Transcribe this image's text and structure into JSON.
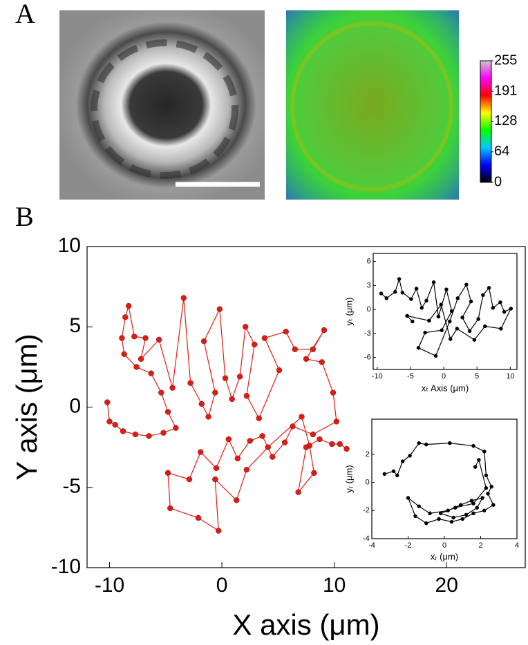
{
  "panel_labels": {
    "a": "A",
    "b": "B"
  },
  "chart_data": [
    {
      "type": "colorbar",
      "ylim": [
        0,
        255
      ],
      "yticks": [
        0,
        64,
        128,
        191,
        255
      ],
      "colors": [
        "#000000",
        "#0000ff",
        "#00c8ff",
        "#00ff00",
        "#ffff00",
        "#ff0000",
        "#ff00ff",
        "#c8c8c8"
      ]
    },
    {
      "type": "line",
      "marker": "circle",
      "xlabel": "X axis (μm)",
      "ylabel": "Y axis (μm)",
      "xlim": [
        -12,
        27
      ],
      "ylim": [
        -10,
        10
      ],
      "xticks": [
        -10,
        0,
        10,
        20
      ],
      "yticks": [
        -10,
        -5,
        0,
        5,
        10
      ],
      "x": [
        -10.2,
        -10.0,
        -9.5,
        -8.8,
        -7.7,
        -6.5,
        -5.2,
        -4.1,
        -4.8,
        -5.4,
        -6.3,
        -7.6,
        -8.7,
        -8.9,
        -8.6,
        -8.3,
        -7.8,
        -6.8,
        -7.2,
        -5.6,
        -4.4,
        -3.4,
        -2.8,
        -1.8,
        -1.2,
        -0.6,
        -1.6,
        -0.2,
        0.3,
        0.9,
        1.6,
        2.1,
        2.9,
        2.2,
        3.3,
        5.1,
        3.8,
        5.7,
        6.5,
        8.1,
        9.1,
        7.5,
        8.9,
        9.9,
        10.2,
        8.1,
        6.3,
        5.6,
        4.5,
        3.6,
        2.5,
        1.4,
        0.6,
        -0.5,
        -1.9,
        -2.9,
        -4.8,
        -4.6,
        -2.1,
        -0.3,
        -0.6,
        1.3,
        2.2,
        4.1,
        7.1,
        7.8,
        8.2,
        6.8,
        7.5,
        8.7,
        9.8,
        10.5,
        11.1
      ],
      "series": [
        {
          "color": "#e31a10",
          "values": [
            0.3,
            -0.9,
            -1.1,
            -1.5,
            -1.7,
            -1.8,
            -1.6,
            -1.3,
            -0.3,
            0.9,
            2.1,
            2.5,
            3.3,
            4.3,
            5.6,
            6.3,
            4.4,
            4.3,
            3.0,
            4.2,
            1.2,
            6.8,
            1.5,
            0.2,
            -0.6,
            0.9,
            4.1,
            6.1,
            1.8,
            0.5,
            1.9,
            5.0,
            3.9,
            0.7,
            -0.7,
            2.3,
            4.3,
            4.7,
            3.6,
            3.6,
            4.8,
            3.0,
            2.8,
            0.9,
            -0.9,
            -1.7,
            -1.2,
            -2.2,
            -3.1,
            -1.8,
            -2.1,
            -3.2,
            -2.0,
            -3.8,
            -2.8,
            -4.5,
            -4.1,
            -6.3,
            -6.9,
            -7.7,
            -4.5,
            -5.8,
            -3.9,
            -2.5,
            -0.6,
            -2.4,
            -4.1,
            -5.3,
            -2.5,
            -2.0,
            -2.3,
            -2.3,
            -2.6
          ]
        }
      ]
    },
    {
      "type": "line",
      "marker": "circle",
      "xlabel": "xₜ Axis (μm)",
      "ylabel": "yₜ (μm)",
      "xlim": [
        -10.6,
        11
      ],
      "ylim": [
        -7.5,
        7
      ],
      "xticks": [
        -10,
        -5,
        0,
        5,
        10
      ],
      "yticks": [
        -6,
        -3,
        0,
        3,
        6
      ],
      "x": [
        -9.4,
        -8.6,
        -7.3,
        -6.7,
        -6.2,
        -4.9,
        -4.1,
        -3.3,
        -2.6,
        -1.5,
        -0.8,
        0.4,
        1.2,
        -0.3,
        -2.8,
        -3.8,
        -1.2,
        0.9,
        2.1,
        3.4,
        4.1,
        2.8,
        3.9,
        5.2,
        5.9,
        6.8,
        7.4,
        8.5,
        9.1,
        10.1,
        8.6,
        6.2,
        4.6,
        2.0,
        1.0,
        -0.4,
        -2.2,
        -5.5,
        -4.7
      ],
      "series": [
        {
          "color": "#000000",
          "values": [
            2.0,
            1.4,
            2.2,
            3.8,
            2.1,
            1.3,
            2.6,
            0.2,
            1.1,
            3.4,
            -0.9,
            2.5,
            -0.2,
            -2.6,
            -2.9,
            -4.8,
            -5.8,
            -1.5,
            1.4,
            3.1,
            1.0,
            -1.0,
            -2.7,
            -1.2,
            1.8,
            2.7,
            0.2,
            0.9,
            -0.3,
            0.1,
            -2.4,
            -2.1,
            -3.8,
            -2.4,
            -3.7,
            0.6,
            -1.4,
            -0.8,
            -1.5
          ]
        }
      ]
    },
    {
      "type": "line",
      "marker": "circle",
      "xlabel": "xᵣ (μm)",
      "ylabel": "yᵣ (μm)",
      "xlim": [
        -4,
        4
      ],
      "ylim": [
        -4,
        4.5
      ],
      "xticks": [
        -4,
        -2,
        0,
        2,
        4
      ],
      "yticks": [
        -4,
        -2,
        0,
        2
      ],
      "x": [
        -3.3,
        -2.8,
        -2.6,
        -2.3,
        -1.9,
        -1.4,
        -1.0,
        0.3,
        1.6,
        2.2,
        2.3,
        2.6,
        2.4,
        2.7,
        2.2,
        1.6,
        1.0,
        0.4,
        -0.3,
        -1.0,
        -1.6,
        -2.0,
        -1.4,
        -0.8,
        0.2,
        0.9,
        1.5,
        2.1,
        1.8,
        1.2,
        0.5,
        -0.2,
        0.6,
        1.6,
        2.3,
        1.9,
        1.7
      ],
      "series": [
        {
          "color": "#000000",
          "values": [
            0.6,
            0.8,
            0.5,
            1.5,
            1.9,
            2.8,
            2.7,
            2.8,
            2.6,
            2.2,
            0.5,
            -0.3,
            -0.8,
            -1.6,
            -2.0,
            -2.2,
            -2.6,
            -2.8,
            -2.6,
            -2.9,
            -2.4,
            -1.1,
            -1.7,
            -2.2,
            -2.0,
            -1.6,
            -1.3,
            -1.1,
            -1.8,
            -2.3,
            -2.5,
            -2.2,
            -1.8,
            -1.5,
            -0.4,
            1.6,
            1.1
          ]
        }
      ]
    }
  ]
}
